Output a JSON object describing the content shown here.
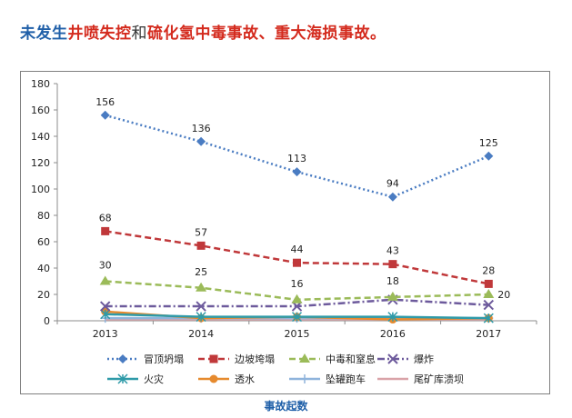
{
  "headline": {
    "part1": "未发生",
    "part2": "井喷失控",
    "part3": "和",
    "part4": "硫化氢中毒事故、重大海损事故。"
  },
  "colors": {
    "headline_blue": "#1f5fa8",
    "headline_red": "#d42b1e"
  },
  "chart_data": {
    "type": "line",
    "title": "",
    "xlabel": "事故起数",
    "ylabel": "",
    "categories": [
      "2013",
      "2014",
      "2015",
      "2016",
      "2017"
    ],
    "ylim": [
      0,
      180
    ],
    "yticks": [
      0,
      20,
      40,
      60,
      80,
      100,
      120,
      140,
      160,
      180
    ],
    "grid": false,
    "legend_position": "bottom",
    "series": [
      {
        "name": "冒顶坍塌",
        "values": [
          156,
          136,
          113,
          94,
          125
        ],
        "color": "#4a7cc2",
        "marker": "diamond",
        "dash": "dot",
        "data_labels": [
          "156",
          "136",
          "113",
          "94",
          "125"
        ]
      },
      {
        "name": "边坡垮塌",
        "values": [
          68,
          57,
          44,
          43,
          28
        ],
        "color": "#c0383a",
        "marker": "square",
        "dash": "dash",
        "data_labels": [
          "68",
          "57",
          "44",
          "43",
          "28"
        ]
      },
      {
        "name": "中毒和窒息",
        "values": [
          30,
          25,
          16,
          18,
          20
        ],
        "color": "#9bbb59",
        "marker": "triangle",
        "dash": "dash",
        "data_labels": [
          "30",
          "25",
          "16",
          "18",
          "20"
        ]
      },
      {
        "name": "爆炸",
        "values": [
          11,
          11,
          11,
          16,
          12
        ],
        "color": "#6d5a9c",
        "marker": "x",
        "dash": "dashdot",
        "data_labels": []
      },
      {
        "name": "火灾",
        "values": [
          5,
          3,
          3,
          3,
          2
        ],
        "color": "#2e9aa8",
        "marker": "star",
        "dash": "solid",
        "data_labels": []
      },
      {
        "name": "透水",
        "values": [
          7,
          2,
          3,
          1,
          2
        ],
        "color": "#e68a2e",
        "marker": "circle",
        "dash": "solid",
        "data_labels": []
      },
      {
        "name": "坠罐跑车",
        "values": [
          2,
          2,
          2,
          2,
          2
        ],
        "color": "#8fb4dc",
        "marker": "plus",
        "dash": "solid",
        "data_labels": []
      },
      {
        "name": "尾矿库溃坝",
        "values": [
          1,
          1,
          1,
          1,
          1
        ],
        "color": "#d9a3a8",
        "marker": "none",
        "dash": "solid",
        "data_labels": []
      }
    ]
  }
}
